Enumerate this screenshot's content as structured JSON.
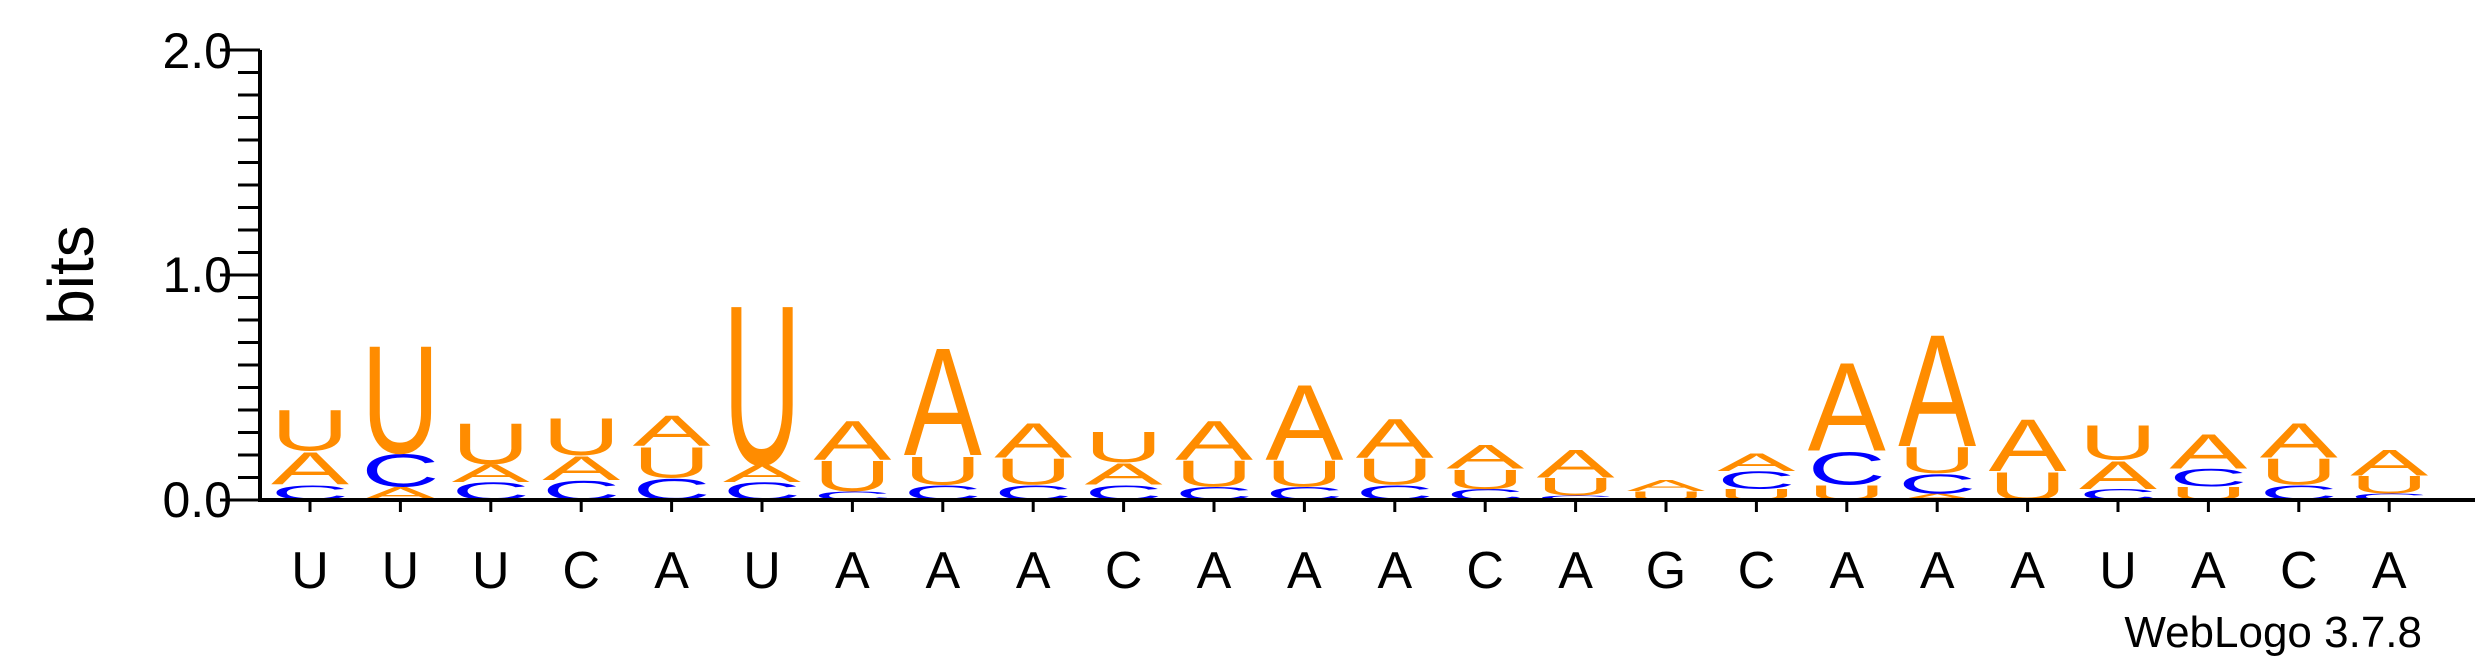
{
  "chart_data": {
    "type": "sequence-logo",
    "ylabel": "bits",
    "ylim": [
      0,
      2
    ],
    "y_ticks": [
      "0.0",
      "1.0",
      "2.0"
    ],
    "x_tick_labels": [
      "U",
      "U",
      "U",
      "C",
      "A",
      "U",
      "A",
      "A",
      "A",
      "C",
      "A",
      "A",
      "A",
      "C",
      "A",
      "G",
      "C",
      "A",
      "A",
      "A",
      "U",
      "A",
      "C",
      "A"
    ],
    "colors": {
      "A": "#FF8C00",
      "U": "#FF8C00",
      "C": "#0000FF",
      "G": "#0000FF"
    },
    "positions": [
      {
        "stack": [
          {
            "letter": "C",
            "bits": 0.07
          },
          {
            "letter": "A",
            "bits": 0.15
          },
          {
            "letter": "U",
            "bits": 0.19
          }
        ]
      },
      {
        "stack": [
          {
            "letter": "A",
            "bits": 0.06
          },
          {
            "letter": "C",
            "bits": 0.15
          },
          {
            "letter": "U",
            "bits": 0.5
          }
        ]
      },
      {
        "stack": [
          {
            "letter": "C",
            "bits": 0.08
          },
          {
            "letter": "A",
            "bits": 0.08
          },
          {
            "letter": "U",
            "bits": 0.19
          }
        ]
      },
      {
        "stack": [
          {
            "letter": "C",
            "bits": 0.09
          },
          {
            "letter": "A",
            "bits": 0.11
          },
          {
            "letter": "U",
            "bits": 0.17
          }
        ]
      },
      {
        "stack": [
          {
            "letter": "C",
            "bits": 0.1
          },
          {
            "letter": "U",
            "bits": 0.14
          },
          {
            "letter": "A",
            "bits": 0.14
          }
        ]
      },
      {
        "stack": [
          {
            "letter": "C",
            "bits": 0.08
          },
          {
            "letter": "A",
            "bits": 0.08
          },
          {
            "letter": "U",
            "bits": 0.74
          }
        ]
      },
      {
        "stack": [
          {
            "letter": "C",
            "bits": 0.04
          },
          {
            "letter": "U",
            "bits": 0.14
          },
          {
            "letter": "A",
            "bits": 0.18
          }
        ]
      },
      {
        "stack": [
          {
            "letter": "C",
            "bits": 0.07
          },
          {
            "letter": "U",
            "bits": 0.13
          },
          {
            "letter": "A",
            "bits": 0.5
          }
        ]
      },
      {
        "stack": [
          {
            "letter": "C",
            "bits": 0.07
          },
          {
            "letter": "U",
            "bits": 0.12
          },
          {
            "letter": "A",
            "bits": 0.16
          }
        ]
      },
      {
        "stack": [
          {
            "letter": "C",
            "bits": 0.07
          },
          {
            "letter": "A",
            "bits": 0.1
          },
          {
            "letter": "U",
            "bits": 0.14
          }
        ]
      },
      {
        "stack": [
          {
            "letter": "C",
            "bits": 0.06
          },
          {
            "letter": "U",
            "bits": 0.12
          },
          {
            "letter": "A",
            "bits": 0.18
          }
        ]
      },
      {
        "stack": [
          {
            "letter": "C",
            "bits": 0.06
          },
          {
            "letter": "U",
            "bits": 0.12
          },
          {
            "letter": "A",
            "bits": 0.35
          }
        ]
      },
      {
        "stack": [
          {
            "letter": "C",
            "bits": 0.07
          },
          {
            "letter": "U",
            "bits": 0.12
          },
          {
            "letter": "A",
            "bits": 0.18
          }
        ]
      },
      {
        "stack": [
          {
            "letter": "C",
            "bits": 0.05
          },
          {
            "letter": "U",
            "bits": 0.09
          },
          {
            "letter": "A",
            "bits": 0.11
          }
        ]
      },
      {
        "stack": [
          {
            "letter": "C",
            "bits": 0.02
          },
          {
            "letter": "U",
            "bits": 0.08
          },
          {
            "letter": "A",
            "bits": 0.13
          }
        ]
      },
      {
        "stack": [
          {
            "letter": "U",
            "bits": 0.04
          },
          {
            "letter": "A",
            "bits": 0.05
          }
        ]
      },
      {
        "stack": [
          {
            "letter": "U",
            "bits": 0.05
          },
          {
            "letter": "C",
            "bits": 0.08
          },
          {
            "letter": "A",
            "bits": 0.08
          }
        ]
      },
      {
        "stack": [
          {
            "letter": "U",
            "bits": 0.07
          },
          {
            "letter": "C",
            "bits": 0.15
          },
          {
            "letter": "A",
            "bits": 0.41
          }
        ]
      },
      {
        "stack": [
          {
            "letter": "A",
            "bits": 0.03
          },
          {
            "letter": "C",
            "bits": 0.09
          },
          {
            "letter": "U",
            "bits": 0.12
          },
          {
            "letter": "A",
            "bits": 0.52
          }
        ]
      },
      {
        "stack": [
          {
            "letter": "U",
            "bits": 0.13
          },
          {
            "letter": "A",
            "bits": 0.24
          }
        ]
      },
      {
        "stack": [
          {
            "letter": "C",
            "bits": 0.05
          },
          {
            "letter": "A",
            "bits": 0.13
          },
          {
            "letter": "U",
            "bits": 0.16
          }
        ]
      },
      {
        "stack": [
          {
            "letter": "U",
            "bits": 0.06
          },
          {
            "letter": "C",
            "bits": 0.08
          },
          {
            "letter": "A",
            "bits": 0.16
          }
        ]
      },
      {
        "stack": [
          {
            "letter": "C",
            "bits": 0.07
          },
          {
            "letter": "U",
            "bits": 0.12
          },
          {
            "letter": "A",
            "bits": 0.16
          }
        ]
      },
      {
        "stack": [
          {
            "letter": "C",
            "bits": 0.03
          },
          {
            "letter": "U",
            "bits": 0.08
          },
          {
            "letter": "A",
            "bits": 0.12
          }
        ]
      }
    ]
  },
  "credit": "WebLogo 3.7.8"
}
